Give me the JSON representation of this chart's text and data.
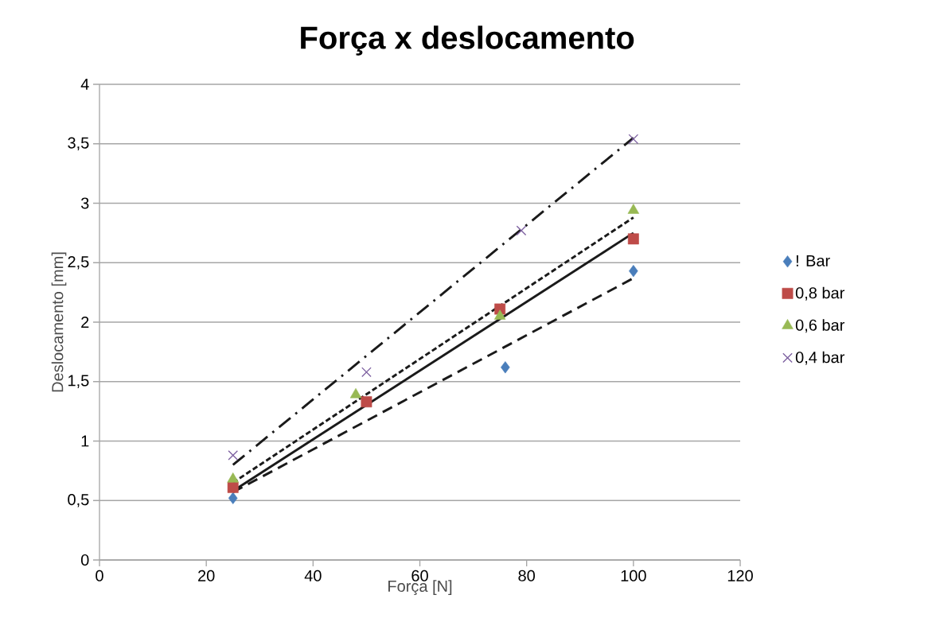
{
  "chart_data": {
    "type": "scatter",
    "title": "Força x deslocamento",
    "xlabel": "Força [N]",
    "ylabel": "Deslocamento [mm]",
    "xlim": [
      0,
      120
    ],
    "xticks": [
      0,
      20,
      40,
      60,
      80,
      100,
      120
    ],
    "ylim": [
      0,
      4
    ],
    "yticks": [
      0,
      {
        "value": 0.5,
        "label": "0,5"
      },
      1,
      {
        "value": 1.5,
        "label": "1,5"
      },
      2,
      {
        "value": 2.5,
        "label": "2,5"
      },
      3,
      {
        "value": 3.5,
        "label": "3,5"
      },
      4
    ],
    "grid": "y",
    "legend": "right",
    "series": [
      {
        "name": "! Bar",
        "color": "#4a7ebb",
        "marker": "diamond",
        "x": [
          25,
          76,
          100
        ],
        "values": [
          0.52,
          1.62,
          2.43
        ]
      },
      {
        "name": "0,8 bar",
        "color": "#be4b48",
        "marker": "square",
        "x": [
          25,
          50,
          75,
          100
        ],
        "values": [
          0.61,
          1.33,
          2.11,
          2.7
        ]
      },
      {
        "name": "0,6 bar",
        "color": "#98b954",
        "marker": "triangle",
        "x": [
          25,
          48,
          75,
          100
        ],
        "values": [
          0.68,
          1.39,
          2.05,
          2.94
        ]
      },
      {
        "name": "0,4 bar",
        "color": "#7d60a0",
        "marker": "cross",
        "x": [
          25,
          50,
          79,
          100
        ],
        "values": [
          0.88,
          1.58,
          2.77,
          3.54
        ]
      },
      {
        "type": "line",
        "color": "#1a1a1a",
        "line_style": "dashed",
        "marker": "none",
        "x": [
          25,
          100
        ],
        "values": [
          0.57,
          2.37
        ]
      },
      {
        "type": "line",
        "color": "#1a1a1a",
        "line_style": "solid",
        "marker": "none",
        "x": [
          25,
          100
        ],
        "values": [
          0.58,
          2.75
        ]
      },
      {
        "type": "line",
        "color": "#1a1a1a",
        "line_style": "dotted",
        "marker": "none",
        "x": [
          25,
          100
        ],
        "values": [
          0.65,
          2.88
        ]
      },
      {
        "type": "line",
        "color": "#1a1a1a",
        "line_style": "dashdot",
        "marker": "none",
        "x": [
          25,
          100
        ],
        "values": [
          0.8,
          3.55
        ]
      }
    ]
  }
}
